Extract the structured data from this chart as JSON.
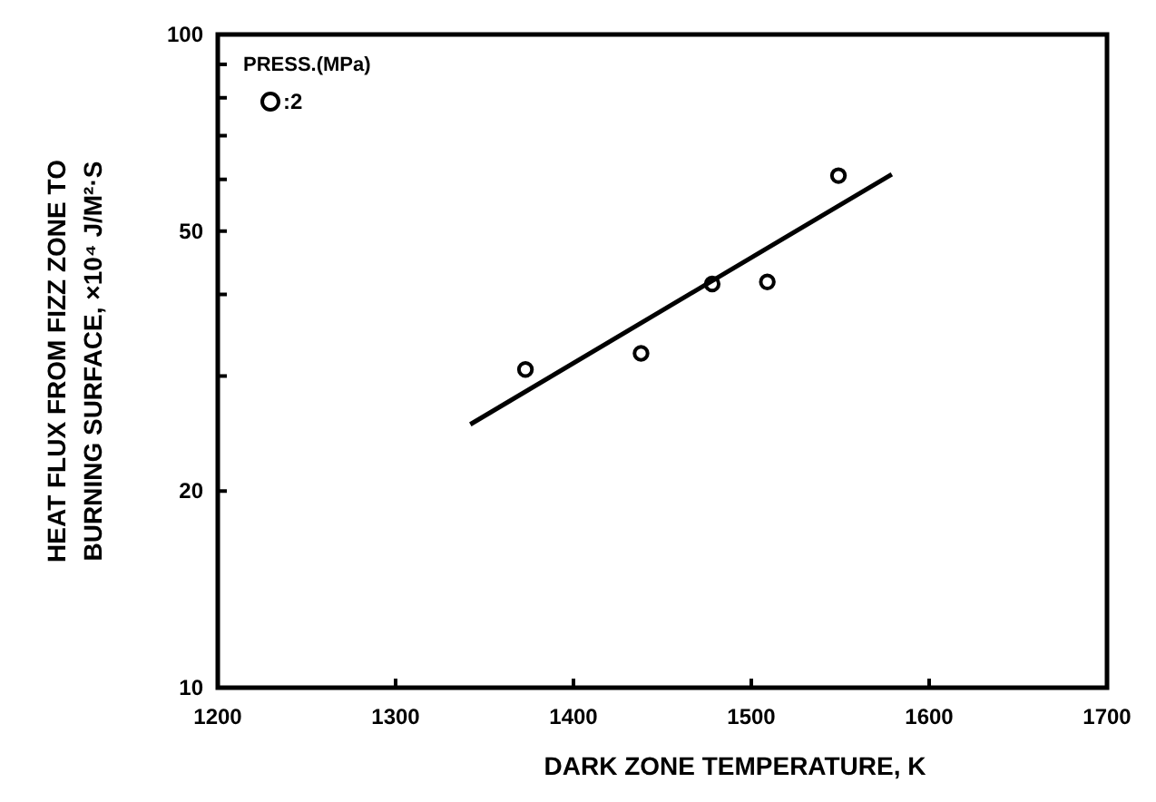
{
  "chart_data": {
    "type": "scatter",
    "xlabel": "DARK ZONE TEMPERATURE, K",
    "ylabel": "HEAT FLUX FROM FIZZ ZONE TO BURNING SURFACE, ×10⁴ J/M²·S",
    "legend_title": "PRESS.(MPa)",
    "log": "y",
    "xlim": [
      1200,
      1700
    ],
    "xticks": [
      1200,
      1300,
      1400,
      1500,
      1600,
      1700
    ],
    "ylim": [
      10,
      100
    ],
    "yticks": [
      10,
      20,
      {
        "value": 30,
        "label": null
      },
      {
        "value": 40,
        "label": null
      },
      50,
      {
        "value": 60,
        "label": null
      },
      {
        "value": 70,
        "label": null
      },
      {
        "value": 80,
        "label": null
      },
      {
        "value": 90,
        "label": null
      },
      100
    ],
    "grid": false,
    "legend": "top left",
    "marker": "circle",
    "series": [
      {
        "name": ":2",
        "color": "#000000",
        "x": [
          1373,
          1438,
          1478,
          1509,
          1549
        ],
        "values": [
          30.7,
          32.5,
          41.5,
          41.8,
          60.8
        ]
      },
      {
        "type": "line",
        "color": "#000000",
        "marker": "none",
        "line_style": "solid",
        "x": [
          1342,
          1579
        ],
        "values": [
          25.3,
          61.1
        ]
      }
    ]
  }
}
